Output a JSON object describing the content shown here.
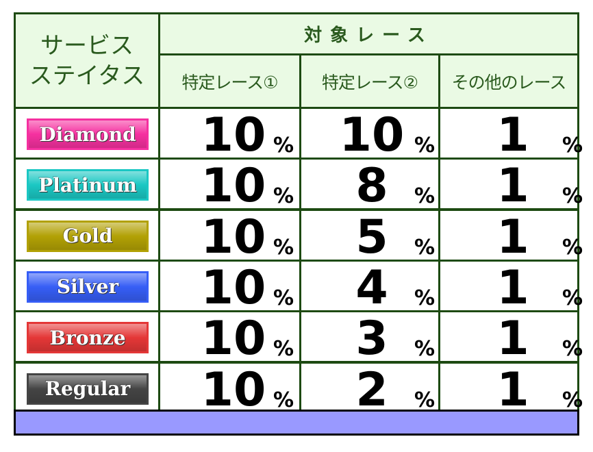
{
  "header": {
    "status_label": "サービス\nステイタス",
    "status_line1": "サービス",
    "status_line2": "ステイタス",
    "target_label": "対象レース",
    "columns": [
      "特定レース①",
      "特定レース②",
      "その他のレース"
    ]
  },
  "percent_sign": "%",
  "rows": [
    {
      "status": "Diamond",
      "color": "#e8359a",
      "values": [
        "10",
        "10",
        "1"
      ]
    },
    {
      "status": "Platinum",
      "color": "#27c4c0",
      "values": [
        "10",
        "8",
        "1"
      ]
    },
    {
      "status": "Gold",
      "color": "#b0a012",
      "values": [
        "10",
        "5",
        "1"
      ]
    },
    {
      "status": "Silver",
      "color": "#3a5ee8",
      "values": [
        "10",
        "4",
        "1"
      ]
    },
    {
      "status": "Bronze",
      "color": "#d83a3a",
      "values": [
        "10",
        "3",
        "1"
      ]
    },
    {
      "status": "Regular",
      "color": "#444444",
      "values": [
        "10",
        "2",
        "1"
      ]
    }
  ],
  "colors": {
    "border": "#1d4a12",
    "header_bg": "#eafae4",
    "footer_bg": "#9999ff"
  }
}
